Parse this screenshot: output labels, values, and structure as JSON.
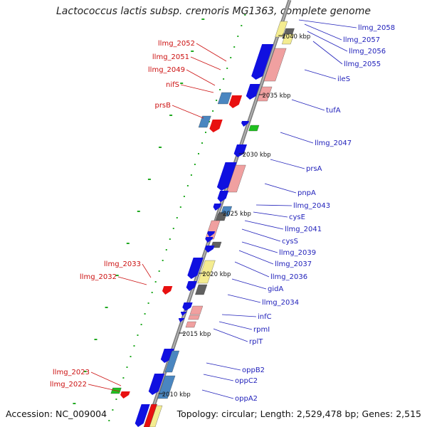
{
  "title": "Lactococcus lactis subsp. cremoris MG1363, complete genome",
  "footer": {
    "accession": "Accession: NC_009004",
    "topology": "Topology: circular; Length: 2,529,478 bp; Genes: 2,515"
  },
  "ticks": [
    "2040 kbp",
    "2035 kbp",
    "2030 kbp",
    "2025 kbp",
    "2020 kbp",
    "2015 kbp",
    "2010 kbp"
  ],
  "right_labels": [
    "llmg_2058",
    "llmg_2057",
    "llmg_2056",
    "llmg_2055",
    "ileS",
    "tufA",
    "llmg_2047",
    "prsA",
    "pnpA",
    "llmg_2043",
    "cysE",
    "llmg_2041",
    "cysS",
    "llmg_2039",
    "llmg_2037",
    "llmg_2036",
    "gidA",
    "llmg_2034",
    "infC",
    "rpmI",
    "rplT",
    "oppB2",
    "oppC2",
    "oppA2"
  ],
  "left_labels": [
    "llmg_2052",
    "llmg_2051",
    "llmg_2049",
    "nifS",
    "prsB",
    "llmg_2033",
    "llmg_2032",
    "llmg_2023",
    "llmg_2022"
  ],
  "colors": {
    "forward": "#1010e0",
    "forward_alt": "#4a86c0",
    "reverse": "#e81010",
    "pink": "#f0a0a0",
    "yellow": "#f4ec90",
    "gray": "#606060",
    "green": "#20c020",
    "label_right": "#2222bb",
    "label_left": "#cc1111"
  }
}
